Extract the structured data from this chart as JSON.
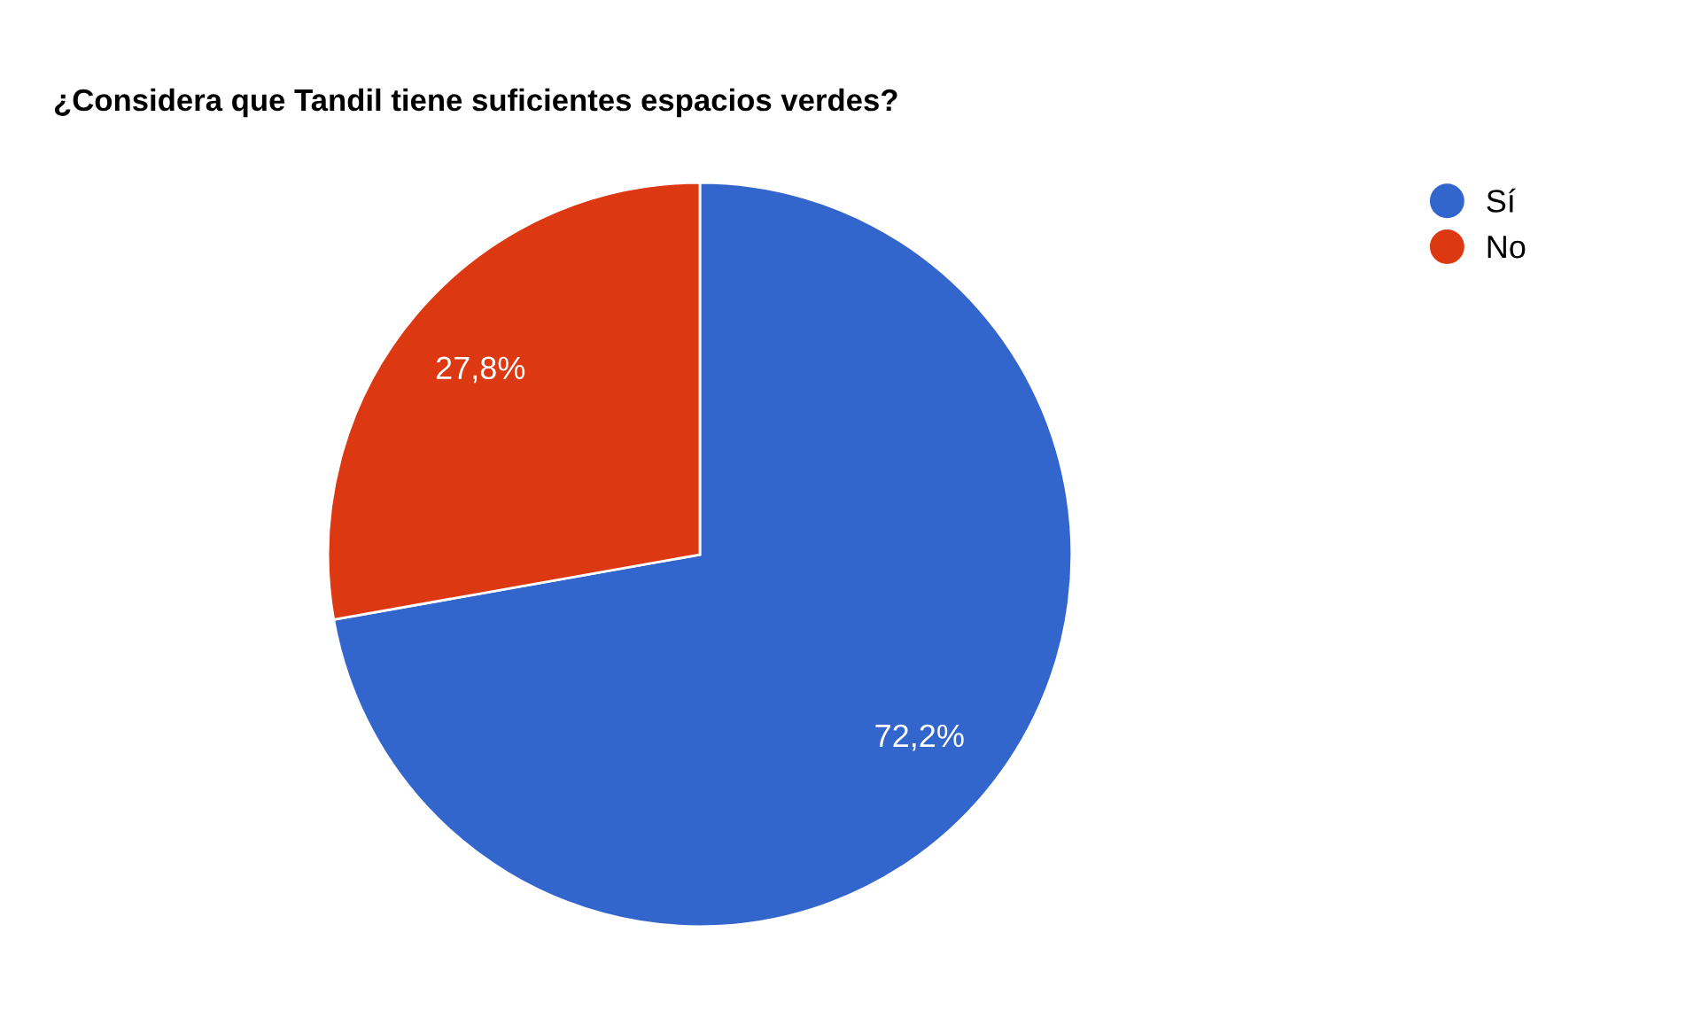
{
  "chart_data": {
    "type": "pie",
    "title": "¿Considera que Tandil tiene suficientes espacios verdes?",
    "categories": [
      "Sí",
      "No"
    ],
    "values": [
      72.2,
      27.8
    ],
    "colors": [
      "#3366cc",
      "#dc3912"
    ],
    "value_labels": [
      "72,2%",
      "27,8%"
    ],
    "legend": "top right"
  }
}
